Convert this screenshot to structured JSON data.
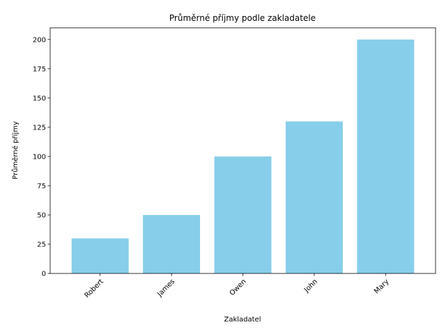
{
  "chart_data": {
    "type": "bar",
    "title": "Průměrné příjmy podle zakladatele",
    "xlabel": "Zakladatel",
    "ylabel": "Průměrné příjmy",
    "categories": [
      "Robert",
      "James",
      "Owen",
      "John",
      "Mary"
    ],
    "values": [
      30,
      50,
      100,
      130,
      200
    ],
    "ylim": [
      0,
      210
    ],
    "yticks": [
      0,
      25,
      50,
      75,
      100,
      125,
      150,
      175,
      200
    ],
    "bar_color": "#87ceeb",
    "grid": false,
    "x_tick_rotation": 45
  }
}
